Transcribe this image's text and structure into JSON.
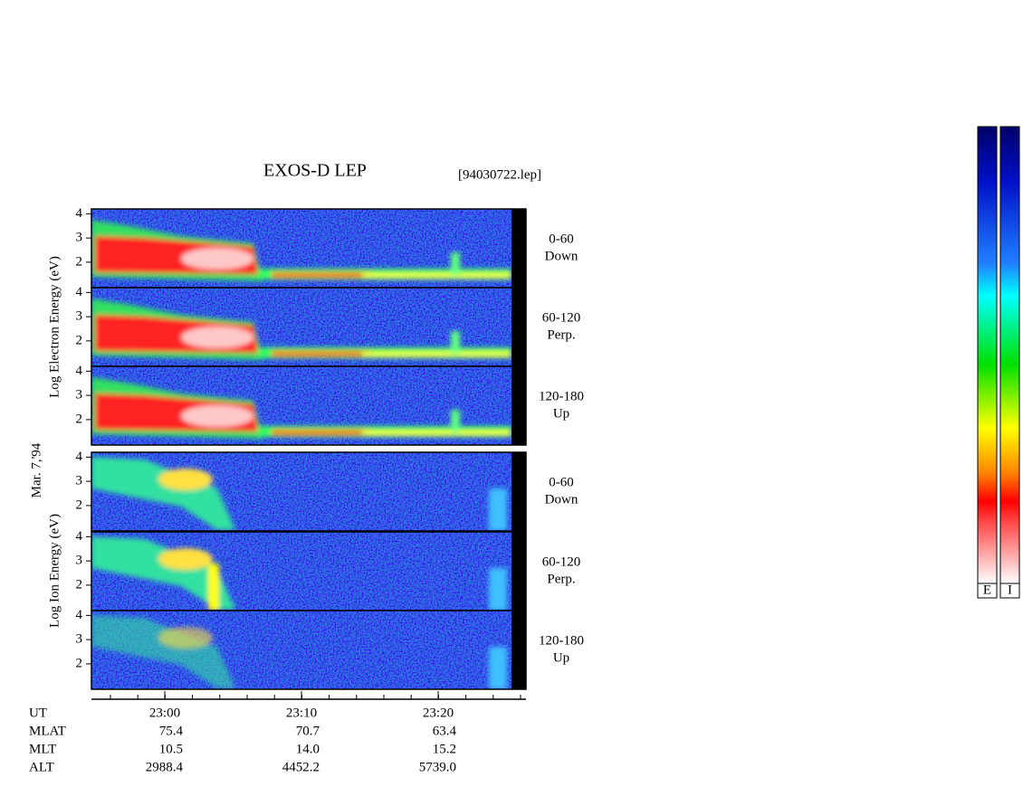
{
  "chart_data": {
    "type": "spectrogram",
    "title": "EXOS-D LEP",
    "file_label": "[94030722.lep]",
    "date_label": "Mar. 7,'94",
    "groups": [
      {
        "ylabel": "Log Electron Energy (eV)",
        "kind": "electron",
        "panels": [
          [
            "0-60",
            "Down"
          ],
          [
            "60-120",
            "Perp."
          ],
          [
            "120-180",
            "Up"
          ]
        ]
      },
      {
        "ylabel": "Log Ion Energy (eV)",
        "kind": "ion",
        "panels": [
          [
            "0-60",
            "Down"
          ],
          [
            "60-120",
            "Perp."
          ],
          [
            "120-180",
            "Up"
          ]
        ]
      }
    ],
    "ylim": [
      0.95,
      4.2
    ],
    "yticks": [
      2,
      3,
      4
    ],
    "xticks": [
      "23:00",
      "23:10",
      "23:20"
    ],
    "orbit_table": [
      {
        "label": "UT"
      },
      {
        "label": "MLAT",
        "values": [
          "75.4",
          "70.7",
          "63.4"
        ]
      },
      {
        "label": "MLT",
        "values": [
          "10.5",
          "14.0",
          "15.2"
        ]
      },
      {
        "label": "ALT",
        "values": [
          "2988.4",
          "4452.2",
          "5739.0"
        ]
      }
    ],
    "colorbar_labels": [
      "E",
      "I"
    ]
  }
}
